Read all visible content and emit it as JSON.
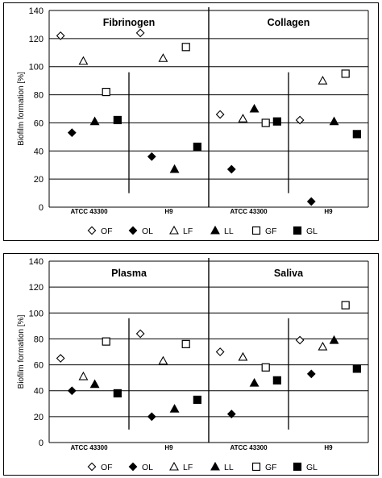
{
  "chart_data": [
    {
      "type": "scatter",
      "ylabel": "Biofilm formation [%]",
      "ylim": [
        0,
        140
      ],
      "yticks": [
        0,
        20,
        40,
        60,
        80,
        100,
        120,
        140
      ],
      "grid": true,
      "legend_position": "bottom",
      "legend": [
        {
          "code": "OF",
          "marker": "diamond-open"
        },
        {
          "code": "OL",
          "marker": "diamond-filled"
        },
        {
          "code": "LF",
          "marker": "triangle-open"
        },
        {
          "code": "LL",
          "marker": "triangle-filled"
        },
        {
          "code": "GF",
          "marker": "square-open"
        },
        {
          "code": "GL",
          "marker": "square-filled"
        }
      ],
      "groups": [
        {
          "title": "Fibrinogen",
          "strains": [
            {
              "name": "ATCC 43300",
              "values": {
                "OF": 122,
                "OL": 53,
                "LF": 104,
                "LL": 61,
                "GF": 82,
                "GL": 62
              }
            },
            {
              "name": "H9",
              "values": {
                "OF": 124,
                "OL": 36,
                "LF": 106,
                "LL": 27,
                "GF": 114,
                "GL": 43
              }
            }
          ]
        },
        {
          "title": "Collagen",
          "strains": [
            {
              "name": "ATCC 43300",
              "values": {
                "OF": 66,
                "OL": 27,
                "LF": 63,
                "LL": 70,
                "GF": 60,
                "GL": 61
              }
            },
            {
              "name": "H9",
              "values": {
                "OF": 62,
                "OL": 4,
                "LF": 90,
                "LL": 61,
                "GF": 95,
                "GL": 52
              }
            }
          ]
        }
      ]
    },
    {
      "type": "scatter",
      "ylabel": "Biofilm formation [%]",
      "ylim": [
        0,
        140
      ],
      "yticks": [
        0,
        20,
        40,
        60,
        80,
        100,
        120,
        140
      ],
      "grid": true,
      "legend_position": "bottom",
      "legend": [
        {
          "code": "OF",
          "marker": "diamond-open"
        },
        {
          "code": "OL",
          "marker": "diamond-filled"
        },
        {
          "code": "LF",
          "marker": "triangle-open"
        },
        {
          "code": "LL",
          "marker": "triangle-filled"
        },
        {
          "code": "GF",
          "marker": "square-open"
        },
        {
          "code": "GL",
          "marker": "square-filled"
        }
      ],
      "groups": [
        {
          "title": "Plasma",
          "strains": [
            {
              "name": "ATCC 43300",
              "values": {
                "OF": 65,
                "OL": 40,
                "LF": 51,
                "LL": 45,
                "GF": 78,
                "GL": 38
              }
            },
            {
              "name": "H9",
              "values": {
                "OF": 84,
                "OL": 20,
                "LF": 63,
                "LL": 26,
                "GF": 76,
                "GL": 33
              }
            }
          ]
        },
        {
          "title": "Saliva",
          "strains": [
            {
              "name": "ATCC 43300",
              "values": {
                "OF": 70,
                "OL": 22,
                "LF": 66,
                "LL": 46,
                "GF": 58,
                "GL": 48
              }
            },
            {
              "name": "H9",
              "values": {
                "OF": 79,
                "OL": 53,
                "LF": 74,
                "LL": 79,
                "GF": 106,
                "GL": 57
              }
            }
          ]
        }
      ]
    }
  ]
}
